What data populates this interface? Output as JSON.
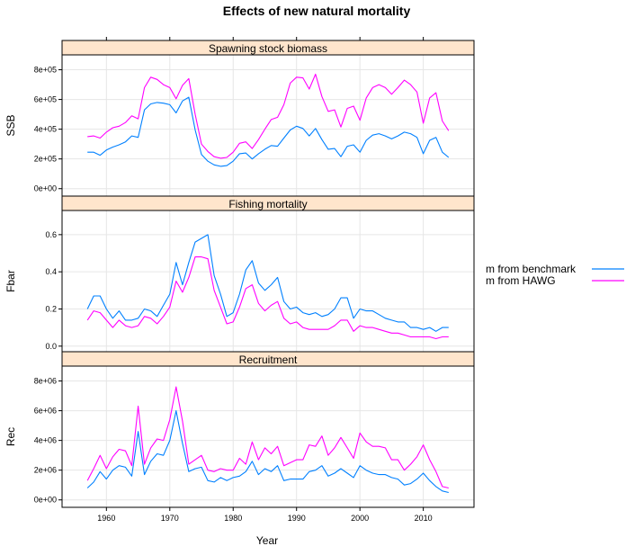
{
  "title": "Effects of new natural mortality",
  "colors": {
    "benchmark": "#0080ff",
    "hawg": "#ff00ff",
    "strip": "#ffe5cc",
    "grid": "#e6e6e6"
  },
  "xlabel": "Year",
  "legend": {
    "placement": "right",
    "items": [
      "m from benchmark",
      "m from HAWG"
    ]
  },
  "chart_data": {
    "type": "line",
    "grid": true,
    "xlim": [
      1953,
      2018
    ],
    "x_ticks": [
      1960,
      1970,
      1980,
      1990,
      2000,
      2010
    ],
    "x_tick_labels": [
      "1960",
      "1970",
      "1980",
      "1990",
      "2000",
      "2010"
    ],
    "years": [
      1957,
      1958,
      1959,
      1960,
      1961,
      1962,
      1963,
      1964,
      1965,
      1966,
      1967,
      1968,
      1969,
      1970,
      1971,
      1972,
      1973,
      1974,
      1975,
      1976,
      1977,
      1978,
      1979,
      1980,
      1981,
      1982,
      1983,
      1984,
      1985,
      1986,
      1987,
      1988,
      1989,
      1990,
      1991,
      1992,
      1993,
      1994,
      1995,
      1996,
      1997,
      1998,
      1999,
      2000,
      2001,
      2002,
      2003,
      2004,
      2005,
      2006,
      2007,
      2008,
      2009,
      2010,
      2011,
      2012,
      2013,
      2014
    ],
    "panels": [
      {
        "strip": "Spawning stock biomass",
        "ylabel": "SSB",
        "ylim": [
          -50000,
          900000
        ],
        "y_ticks": [
          0,
          200000,
          400000,
          600000,
          800000
        ],
        "y_tick_labels": [
          "0e+00",
          "2e+05",
          "4e+05",
          "6e+05",
          "8e+05"
        ],
        "series": [
          {
            "name": "m from benchmark",
            "values": [
              245000,
              245000,
              225000,
              260000,
              280000,
              295000,
              315000,
              355000,
              345000,
              530000,
              570000,
              580000,
              575000,
              565000,
              510000,
              590000,
              615000,
              395000,
              230000,
              185000,
              160000,
              150000,
              155000,
              185000,
              235000,
              240000,
              200000,
              235000,
              265000,
              290000,
              285000,
              340000,
              395000,
              420000,
              405000,
              355000,
              405000,
              330000,
              265000,
              270000,
              215000,
              285000,
              295000,
              245000,
              325000,
              360000,
              370000,
              355000,
              335000,
              355000,
              380000,
              370000,
              345000,
              235000,
              325000,
              345000,
              245000,
              210000
            ]
          },
          {
            "name": "m from HAWG",
            "values": [
              350000,
              355000,
              340000,
              380000,
              410000,
              420000,
              445000,
              490000,
              470000,
              680000,
              750000,
              735000,
              700000,
              680000,
              605000,
              695000,
              740000,
              500000,
              300000,
              250000,
              215000,
              205000,
              210000,
              245000,
              305000,
              315000,
              270000,
              330000,
              400000,
              465000,
              480000,
              565000,
              710000,
              750000,
              745000,
              670000,
              770000,
              620000,
              520000,
              530000,
              415000,
              540000,
              555000,
              460000,
              610000,
              680000,
              700000,
              680000,
              635000,
              680000,
              730000,
              700000,
              650000,
              440000,
              610000,
              645000,
              455000,
              390000
            ]
          }
        ]
      },
      {
        "strip": "Fishing mortality",
        "ylabel": "Fbar",
        "ylim": [
          -0.03,
          0.73
        ],
        "y_ticks": [
          0,
          0.2,
          0.4,
          0.6
        ],
        "y_tick_labels": [
          "0.0",
          "0.2",
          "0.4",
          "0.6"
        ],
        "series": [
          {
            "name": "m from benchmark",
            "values": [
              0.2,
              0.27,
              0.27,
              0.2,
              0.15,
              0.19,
              0.14,
              0.14,
              0.15,
              0.2,
              0.19,
              0.16,
              0.22,
              0.28,
              0.45,
              0.33,
              0.45,
              0.56,
              0.58,
              0.6,
              0.38,
              0.28,
              0.16,
              0.18,
              0.28,
              0.41,
              0.46,
              0.34,
              0.3,
              0.33,
              0.37,
              0.24,
              0.2,
              0.21,
              0.18,
              0.17,
              0.18,
              0.16,
              0.17,
              0.2,
              0.26,
              0.26,
              0.15,
              0.2,
              0.19,
              0.19,
              0.17,
              0.15,
              0.14,
              0.13,
              0.13,
              0.1,
              0.1,
              0.09,
              0.1,
              0.08,
              0.1,
              0.1
            ]
          },
          {
            "name": "m from HAWG",
            "values": [
              0.14,
              0.19,
              0.18,
              0.14,
              0.1,
              0.14,
              0.11,
              0.1,
              0.11,
              0.16,
              0.15,
              0.12,
              0.16,
              0.21,
              0.35,
              0.29,
              0.37,
              0.48,
              0.48,
              0.47,
              0.3,
              0.21,
              0.12,
              0.13,
              0.21,
              0.31,
              0.33,
              0.23,
              0.19,
              0.22,
              0.24,
              0.15,
              0.12,
              0.13,
              0.1,
              0.09,
              0.09,
              0.09,
              0.09,
              0.11,
              0.14,
              0.14,
              0.08,
              0.11,
              0.1,
              0.1,
              0.09,
              0.08,
              0.07,
              0.07,
              0.06,
              0.05,
              0.05,
              0.05,
              0.05,
              0.04,
              0.05,
              0.05
            ]
          }
        ]
      },
      {
        "strip": "Recruitment",
        "ylabel": "Rec",
        "ylim": [
          -500000,
          9000000
        ],
        "y_ticks": [
          0,
          2000000,
          4000000,
          6000000,
          8000000
        ],
        "y_tick_labels": [
          "0e+00",
          "2e+06",
          "4e+06",
          "6e+06",
          "8e+06"
        ],
        "series": [
          {
            "name": "m from benchmark",
            "values": [
              800000,
              1200000,
              1900000,
              1400000,
              2000000,
              2300000,
              2200000,
              1600000,
              4600000,
              1700000,
              2600000,
              3100000,
              3000000,
              4000000,
              6000000,
              3800000,
              1900000,
              2100000,
              2200000,
              1300000,
              1200000,
              1500000,
              1300000,
              1500000,
              1600000,
              1900000,
              2600000,
              1700000,
              2100000,
              1900000,
              2300000,
              1300000,
              1400000,
              1400000,
              1400000,
              1900000,
              2000000,
              2300000,
              1600000,
              1800000,
              2100000,
              1800000,
              1500000,
              2300000,
              2000000,
              1800000,
              1700000,
              1700000,
              1500000,
              1400000,
              1000000,
              1100000,
              1400000,
              1800000,
              1300000,
              900000,
              600000,
              500000
            ]
          },
          {
            "name": "m from HAWG",
            "values": [
              1300000,
              2100000,
              3000000,
              2100000,
              2900000,
              3400000,
              3300000,
              2300000,
              6300000,
              2400000,
              3500000,
              4100000,
              4000000,
              5400000,
              7600000,
              5300000,
              2400000,
              2700000,
              3000000,
              2000000,
              1900000,
              2100000,
              2000000,
              2000000,
              2800000,
              2400000,
              3900000,
              2700000,
              3500000,
              3100000,
              3600000,
              2300000,
              2500000,
              2700000,
              2700000,
              3700000,
              3600000,
              4300000,
              3000000,
              3500000,
              4200000,
              3500000,
              2800000,
              4500000,
              3900000,
              3600000,
              3600000,
              3500000,
              2700000,
              2700000,
              2000000,
              2400000,
              2900000,
              3700000,
              2700000,
              1900000,
              900000,
              800000
            ]
          }
        ]
      }
    ]
  }
}
